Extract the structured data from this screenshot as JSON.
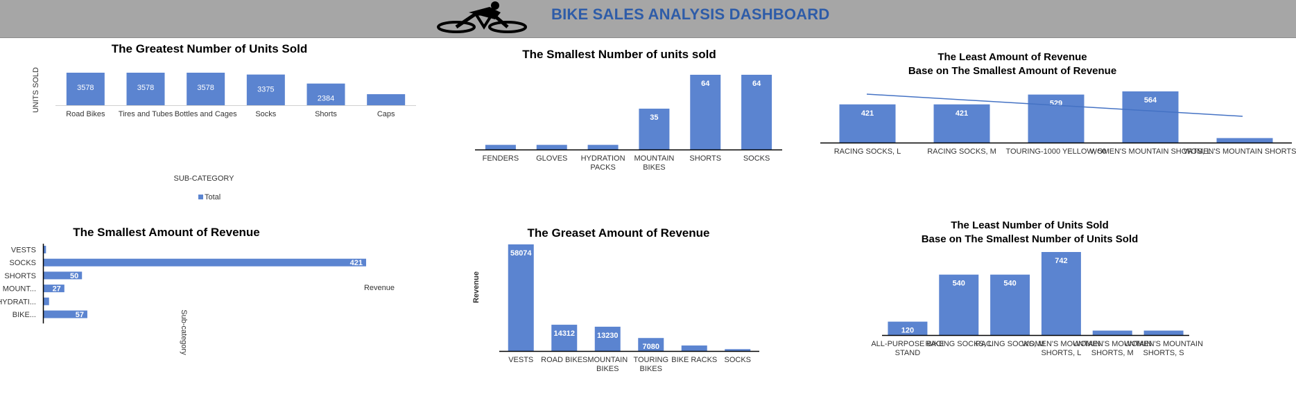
{
  "header": {
    "title": "BIKE SALES ANALYSIS DASHBOARD"
  },
  "colors": {
    "bar": "#5b84d0",
    "header_bg": "#a6a6a6",
    "title": "#2e5ca8",
    "trendline": "#4472c4"
  },
  "icons": {
    "logo": "cyclist-icon"
  },
  "chart_data": [
    {
      "id": "greatest_units",
      "type": "bar",
      "title": "The Greatest  Number of Units Sold",
      "ylabel": "UNITS SOLD",
      "xlabel": "SUB-CATEGORY",
      "legend": "Total",
      "legend_position": "bottom",
      "categories": [
        "Road Bikes",
        "Tires and Tubes",
        "Bottles and Cages",
        "Socks",
        "Shorts",
        "Caps"
      ],
      "values": [
        3578,
        3578,
        3578,
        3375,
        2384,
        1215
      ],
      "data_labels": [
        "3578",
        "3578",
        "3578",
        "3375",
        "2384",
        "1215"
      ],
      "ylim": [
        0,
        3578
      ]
    },
    {
      "id": "smallest_units",
      "type": "bar",
      "title": "The Smallest  Number of units sold",
      "categories": [
        "FENDERS",
        "GLOVES",
        "HYDRATION PACKS",
        "MOUNTAIN BIKES",
        "SHORTS",
        "SOCKS"
      ],
      "values": [
        4,
        4,
        4,
        35,
        64,
        64
      ],
      "data_labels": [
        "",
        "",
        "",
        "35",
        "64",
        "64"
      ],
      "ylim": [
        0,
        64
      ]
    },
    {
      "id": "least_revenue_base",
      "type": "bar",
      "title_lines": [
        "The Least Amount of Revenue",
        "Base on The Smallest Amount of Revenue"
      ],
      "categories": [
        "RACING SOCKS, L",
        "RACING SOCKS, M",
        "TOURING-1000 YELLOW, 50",
        "WOMEN'S MOUNTAIN SHORTS, L",
        "WOMEN'S MOUNTAIN SHORTS, S"
      ],
      "values": [
        421,
        421,
        529,
        564,
        50
      ],
      "data_labels": [
        "421",
        "421",
        "529",
        "564",
        ""
      ],
      "trendline": true,
      "ylim": [
        0,
        564
      ]
    },
    {
      "id": "smallest_revenue",
      "type": "bar",
      "orientation": "horizontal",
      "title": "The Smallest Amount of Revenue",
      "xlabel": "Revenue",
      "ylabel": "Sub-category",
      "categories": [
        "VESTS",
        "SOCKS",
        "SHORTS",
        "MOUNT...",
        "HYDRATI...",
        "BIKE..."
      ],
      "values": [
        3,
        421,
        50,
        27,
        7,
        57
      ],
      "data_labels": [
        "",
        "421",
        "50",
        "27",
        "",
        "57"
      ],
      "xlim": [
        0,
        421
      ]
    },
    {
      "id": "greatest_revenue",
      "type": "bar",
      "title": "The Greaset Amount of Revenue",
      "ylabel": "Revenue",
      "categories": [
        "VESTS",
        "ROAD BIKES",
        "MOUNTAIN BIKES",
        "TOURING BIKES",
        "BIKE RACKS",
        "SOCKS"
      ],
      "values": [
        58074,
        14312,
        13230,
        7080,
        3000,
        1000
      ],
      "data_labels": [
        "58074",
        "14312",
        "13230",
        "7080",
        "",
        ""
      ],
      "ylim": [
        0,
        58074
      ]
    },
    {
      "id": "least_units_base",
      "type": "bar",
      "title_lines": [
        "The Least Number of Units Sold",
        "Base on The Smallest Number of Units Sold"
      ],
      "categories": [
        "ALL-PURPOSE BIKE STAND",
        "RACING SOCKS, L",
        "RACING SOCKS, M",
        "WOMEN'S MOUNTAIN SHORTS, L",
        "WOMEN'S MOUNTAIN SHORTS, M",
        "WOMEN'S MOUNTAIN SHORTS, S"
      ],
      "values": [
        120,
        540,
        540,
        742,
        40,
        40
      ],
      "data_labels": [
        "120",
        "540",
        "540",
        "742",
        "",
        ""
      ],
      "ylim": [
        0,
        742
      ]
    }
  ]
}
